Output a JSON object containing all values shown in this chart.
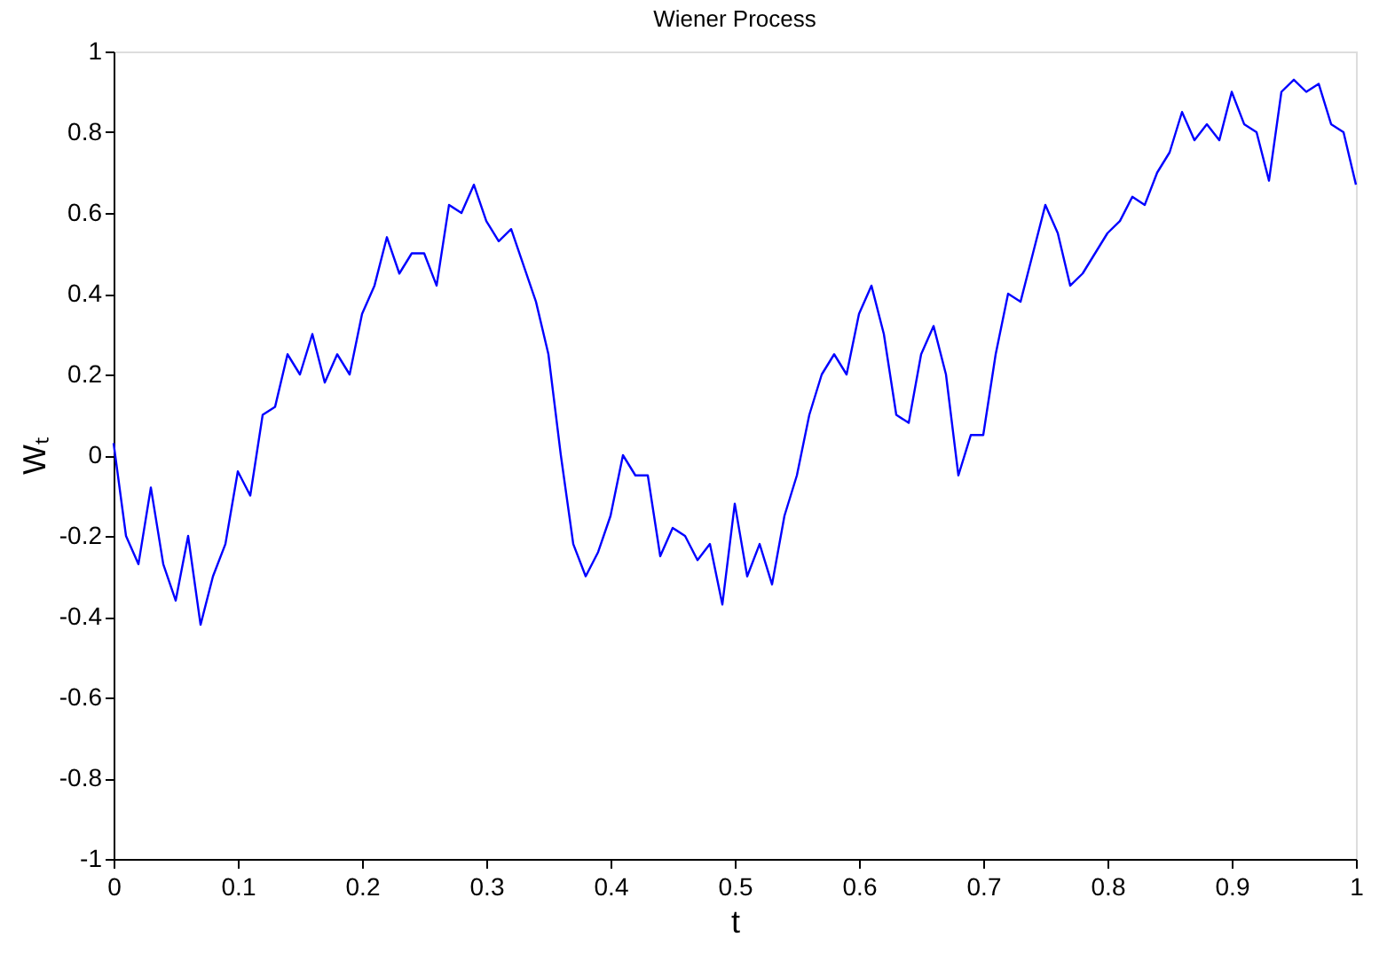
{
  "chart_data": {
    "type": "line",
    "title": "Wiener Process",
    "xlabel": "t",
    "ylabel": "Wₜ",
    "x": [
      0,
      0.01,
      0.02,
      0.03,
      0.04,
      0.05,
      0.06,
      0.07,
      0.08,
      0.09,
      0.1,
      0.11,
      0.12,
      0.13,
      0.14,
      0.15,
      0.16,
      0.17,
      0.18,
      0.19,
      0.2,
      0.21,
      0.22,
      0.23,
      0.24,
      0.25,
      0.26,
      0.27,
      0.28,
      0.29,
      0.3,
      0.31,
      0.32,
      0.33,
      0.34,
      0.35,
      0.36,
      0.37,
      0.38,
      0.39,
      0.4,
      0.41,
      0.42,
      0.43,
      0.44,
      0.45,
      0.46,
      0.47,
      0.48,
      0.49,
      0.5,
      0.51,
      0.52,
      0.53,
      0.54,
      0.55,
      0.56,
      0.57,
      0.58,
      0.59,
      0.6,
      0.61,
      0.62,
      0.63,
      0.64,
      0.65,
      0.66,
      0.67,
      0.68,
      0.69,
      0.7,
      0.71,
      0.72,
      0.73,
      0.74,
      0.75,
      0.76,
      0.77,
      0.78,
      0.79,
      0.8,
      0.81,
      0.82,
      0.83,
      0.84,
      0.85,
      0.86,
      0.87,
      0.88,
      0.89,
      0.9,
      0.91,
      0.92,
      0.93,
      0.94,
      0.95,
      0.96,
      0.97,
      0.98,
      0.99,
      1.0
    ],
    "series": [
      {
        "color": "#0000ff",
        "values": [
          0.03,
          -0.2,
          -0.27,
          -0.08,
          -0.27,
          -0.36,
          -0.2,
          -0.42,
          -0.3,
          -0.22,
          -0.04,
          -0.1,
          0.1,
          0.12,
          0.25,
          0.2,
          0.3,
          0.18,
          0.25,
          0.2,
          0.35,
          0.42,
          0.54,
          0.45,
          0.5,
          0.5,
          0.42,
          0.62,
          0.6,
          0.67,
          0.58,
          0.53,
          0.56,
          0.47,
          0.38,
          0.25,
          0.0,
          -0.22,
          -0.3,
          -0.24,
          -0.15,
          0.0,
          -0.05,
          -0.05,
          -0.25,
          -0.18,
          -0.2,
          -0.26,
          -0.22,
          -0.37,
          -0.12,
          -0.3,
          -0.22,
          -0.32,
          -0.15,
          -0.05,
          0.1,
          0.2,
          0.25,
          0.2,
          0.35,
          0.42,
          0.3,
          0.1,
          0.08,
          0.25,
          0.32,
          0.2,
          -0.05,
          0.05,
          0.05,
          0.25,
          0.4,
          0.38,
          0.5,
          0.62,
          0.55,
          0.42,
          0.45,
          0.5,
          0.55,
          0.58,
          0.64,
          0.62,
          0.7,
          0.75,
          0.85,
          0.78,
          0.82,
          0.78,
          0.9,
          0.82,
          0.8,
          0.68,
          0.9,
          0.93,
          0.9,
          0.92,
          0.82,
          0.8,
          0.67
        ]
      }
    ],
    "xlim": [
      0,
      1
    ],
    "xticks": [
      0,
      0.1,
      0.2,
      0.3,
      0.4,
      0.5,
      0.6,
      0.7,
      0.8,
      0.9,
      1
    ],
    "ylim": [
      -1,
      1
    ],
    "yticks": [
      -1,
      -0.8,
      -0.6,
      -0.4,
      -0.2,
      0,
      0.2,
      0.4,
      0.6,
      0.8,
      1
    ],
    "grid": false,
    "line_style": "solid",
    "marker": "none"
  }
}
